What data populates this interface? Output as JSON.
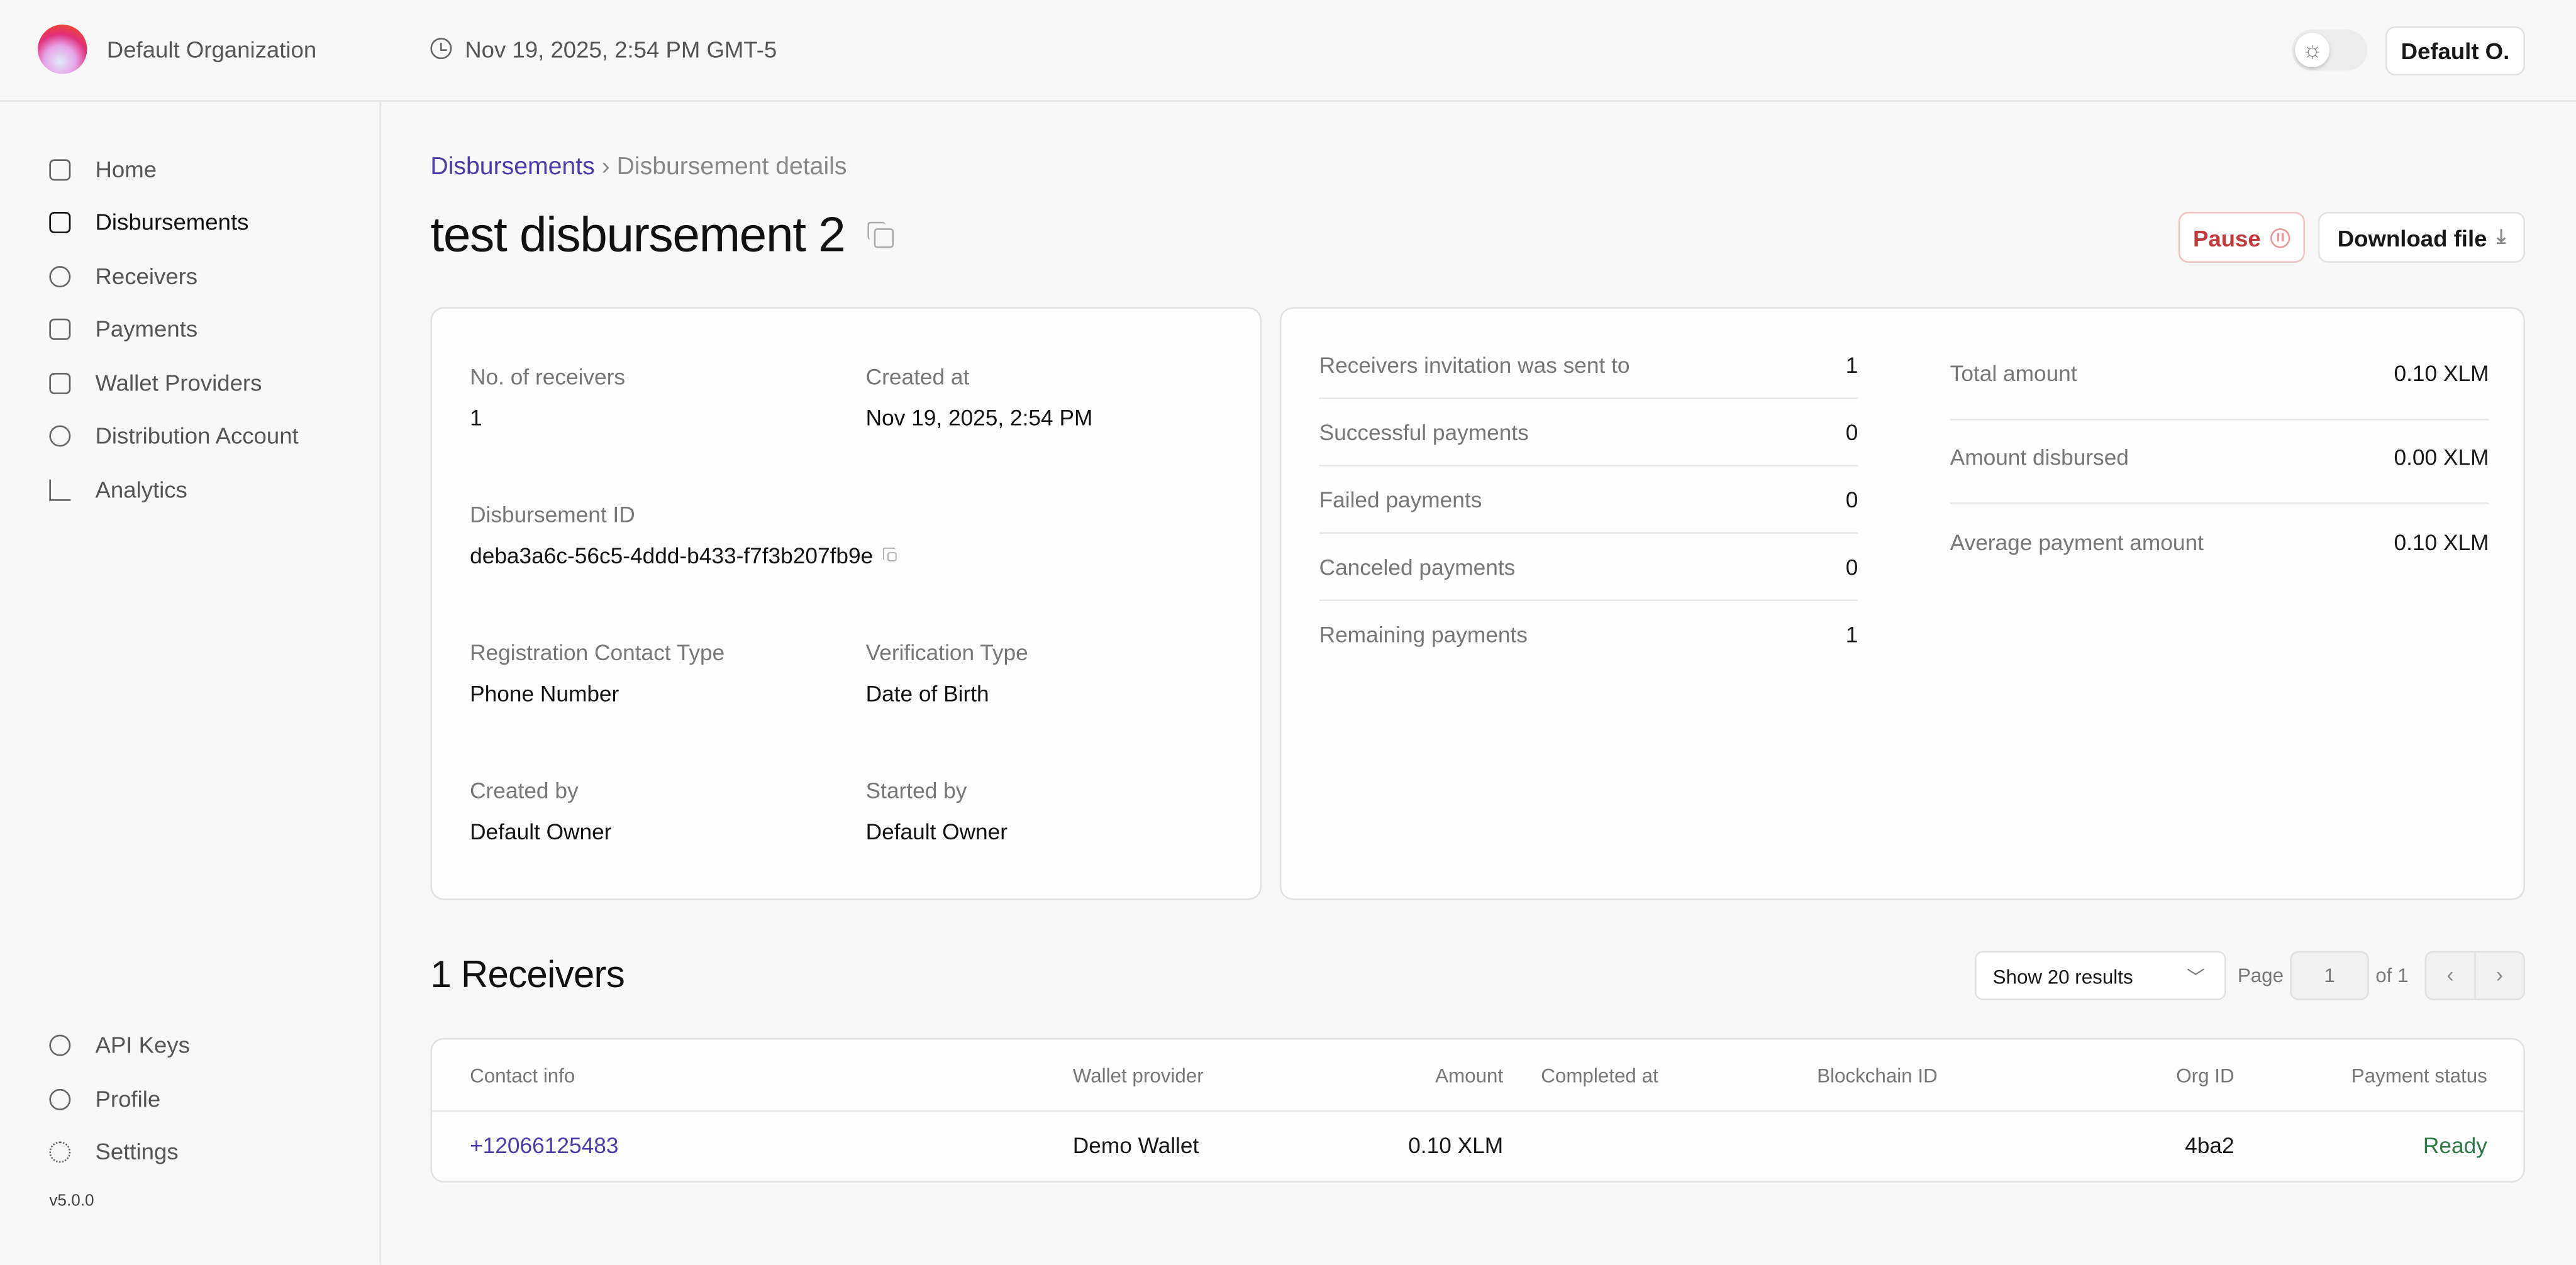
{
  "header": {
    "org_name": "Default Organization",
    "datetime": "Nov 19, 2025, 2:54 PM GMT-5",
    "user_button": "Default O.",
    "theme_icon": "sun-icon"
  },
  "sidebar": {
    "items": [
      {
        "label": "Home",
        "icon": "home-icon"
      },
      {
        "label": "Disbursements",
        "icon": "inbox-icon",
        "active": true
      },
      {
        "label": "Receivers",
        "icon": "users-icon"
      },
      {
        "label": "Payments",
        "icon": "banknote-icon"
      },
      {
        "label": "Wallet Providers",
        "icon": "wallet-icon"
      },
      {
        "label": "Distribution Account",
        "icon": "network-icon"
      },
      {
        "label": "Analytics",
        "icon": "chart-icon"
      }
    ],
    "bottom_items": [
      {
        "label": "API Keys",
        "icon": "key-icon"
      },
      {
        "label": "Profile",
        "icon": "user-circle-icon"
      },
      {
        "label": "Settings",
        "icon": "gear-icon"
      }
    ],
    "version": "v5.0.0"
  },
  "breadcrumb": {
    "parent": "Disbursements",
    "separator": "›",
    "current": "Disbursement details"
  },
  "page": {
    "title": "test disbursement 2",
    "pause_label": "Pause",
    "download_label": "Download file"
  },
  "details": {
    "no_receivers_label": "No. of receivers",
    "no_receivers": "1",
    "created_at_label": "Created at",
    "created_at": "Nov 19, 2025, 2:54 PM",
    "id_label": "Disbursement ID",
    "id": "deba3a6c-56c5-4ddd-b433-f7f3b207fb9e",
    "reg_contact_label": "Registration Contact Type",
    "reg_contact": "Phone Number",
    "verification_label": "Verification Type",
    "verification": "Date of Birth",
    "created_by_label": "Created by",
    "created_by": "Default Owner",
    "started_by_label": "Started by",
    "started_by": "Default Owner"
  },
  "stats": [
    {
      "label": "Receivers invitation was sent to",
      "value": "1"
    },
    {
      "label": "Successful payments",
      "value": "0"
    },
    {
      "label": "Failed payments",
      "value": "0"
    },
    {
      "label": "Canceled payments",
      "value": "0"
    },
    {
      "label": "Remaining payments",
      "value": "1"
    }
  ],
  "amounts": [
    {
      "label": "Total amount",
      "value": "0.10 XLM"
    },
    {
      "label": "Amount disbursed",
      "value": "0.00 XLM"
    },
    {
      "label": "Average payment amount",
      "value": "0.10 XLM"
    }
  ],
  "receivers": {
    "title": "1 Receivers",
    "page_size": "Show 20 results",
    "page_label": "Page",
    "page": "1",
    "of_label": "of 1",
    "columns": [
      "Contact info",
      "Wallet provider",
      "Amount",
      "Completed at",
      "Blockchain ID",
      "Org ID",
      "Payment status"
    ],
    "rows": [
      {
        "contact": "+12066125483",
        "wallet": "Demo Wallet",
        "amount": "0.10 XLM",
        "completed": "",
        "blockchain": "",
        "org_id": "4ba2",
        "status": "Ready"
      }
    ]
  },
  "colors": {
    "link": "#4c3ba8",
    "danger": "#c0393b",
    "success": "#2e7a4a"
  }
}
